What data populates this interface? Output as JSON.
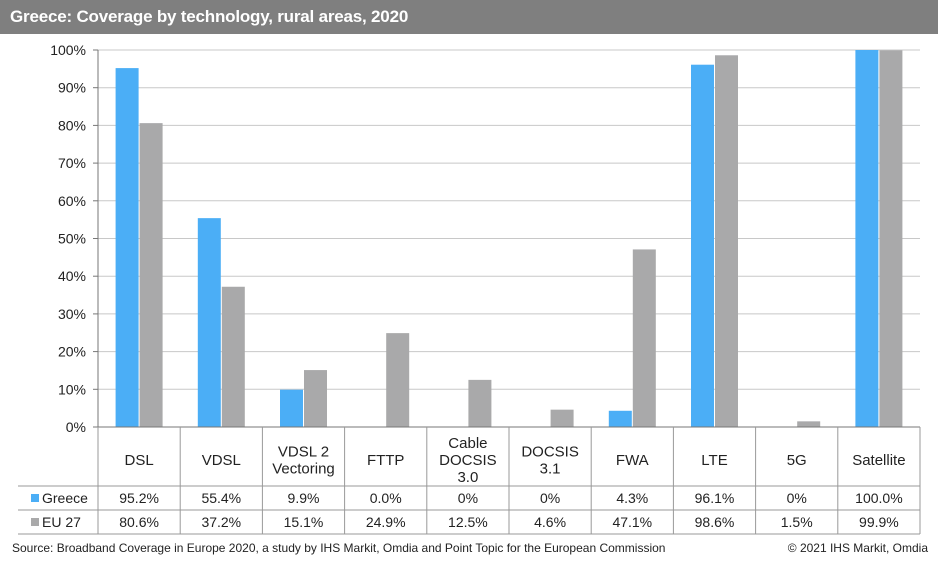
{
  "title": "Greece: Coverage by technology, rural areas, 2020",
  "source": "Source: Broadband Coverage in Europe 2020, a study by IHS Markit, Omdia and Point Topic for the European Commission",
  "copyright": "© 2021 IHS Markit, Omdia",
  "colors": {
    "greece": "#4baef6",
    "eu27": "#a9a9aa"
  },
  "chart_data": {
    "type": "bar",
    "title": "Greece: Coverage by technology, rural areas, 2020",
    "categories": [
      [
        "DSL"
      ],
      [
        "VDSL"
      ],
      [
        "VDSL 2",
        "Vectoring"
      ],
      [
        "FTTP"
      ],
      [
        "Cable",
        "DOCSIS",
        "3.0"
      ],
      [
        "DOCSIS",
        "3.1"
      ],
      [
        "FWA"
      ],
      [
        "LTE"
      ],
      [
        "5G"
      ],
      [
        "Satellite"
      ]
    ],
    "series": [
      {
        "name": "Greece",
        "values": [
          95.2,
          55.4,
          9.9,
          0.0,
          0,
          0,
          4.3,
          96.1,
          0,
          100.0
        ],
        "labels": [
          "95.2%",
          "55.4%",
          "9.9%",
          "0.0%",
          "0%",
          "0%",
          "4.3%",
          "96.1%",
          "0%",
          "100.0%"
        ]
      },
      {
        "name": "EU 27",
        "values": [
          80.6,
          37.2,
          15.1,
          24.9,
          12.5,
          4.6,
          47.1,
          98.6,
          1.5,
          99.9
        ],
        "labels": [
          "80.6%",
          "37.2%",
          "15.1%",
          "24.9%",
          "12.5%",
          "4.6%",
          "47.1%",
          "98.6%",
          "1.5%",
          "99.9%"
        ]
      }
    ],
    "yticks": [
      "0%",
      "10%",
      "20%",
      "30%",
      "40%",
      "50%",
      "60%",
      "70%",
      "80%",
      "90%",
      "100%"
    ],
    "ylim": [
      0,
      100
    ],
    "grid": true,
    "legend": "table-rows"
  }
}
